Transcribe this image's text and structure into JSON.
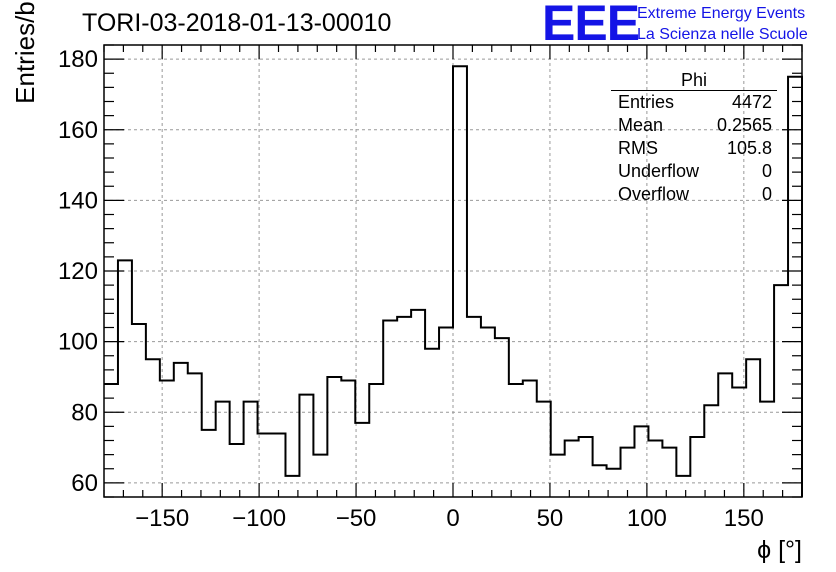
{
  "title": "TORI-03-2018-01-13-00010",
  "logo": {
    "text": "EEE",
    "line1": "Extreme Energy Events",
    "line2": "La Scienza nelle Scuole",
    "color": "#1414e6"
  },
  "stats": {
    "title": "Phi",
    "rows": [
      {
        "label": "Entries",
        "value": "4472"
      },
      {
        "label": "Mean",
        "value": "0.2565"
      },
      {
        "label": "RMS",
        "value": "105.8"
      },
      {
        "label": "Underflow",
        "value": "0"
      },
      {
        "label": "Overflow",
        "value": "0"
      }
    ]
  },
  "chart_data": {
    "type": "bar",
    "style": "step-histogram",
    "title": "TORI-03-2018-01-13-00010",
    "xlabel": "ϕ [°]",
    "ylabel": "Entries/bin",
    "xlim": [
      -180,
      180
    ],
    "ylim": [
      56,
      184
    ],
    "bin_width": 7.2,
    "xticks": [
      -150,
      -100,
      -50,
      0,
      50,
      100,
      150
    ],
    "xtick_labels": [
      "−150",
      "−100",
      "−50",
      "0",
      "50",
      "100",
      "150"
    ],
    "yticks": [
      60,
      80,
      100,
      120,
      140,
      160,
      180
    ],
    "ytick_labels": [
      "60",
      "80",
      "100",
      "120",
      "140",
      "160",
      "180"
    ],
    "grid": true,
    "values": [
      88,
      123,
      105,
      95,
      89,
      94,
      91,
      75,
      83,
      71,
      83,
      74,
      74,
      62,
      85,
      68,
      90,
      89,
      77,
      88,
      106,
      107,
      109,
      98,
      104,
      178,
      107,
      104,
      101,
      88,
      89,
      83,
      68,
      72,
      73,
      65,
      64,
      70,
      76,
      72,
      70,
      62,
      73,
      82,
      91,
      87,
      95,
      83,
      116,
      175
    ]
  }
}
